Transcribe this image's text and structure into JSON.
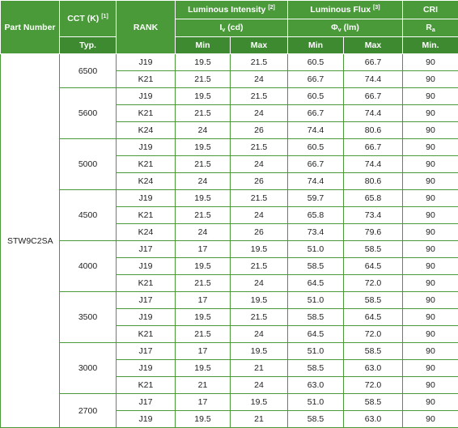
{
  "header": {
    "part_number": "Part Number",
    "cct": "CCT (K)",
    "cct_ref": "[1]",
    "rank": "RANK",
    "intensity": "Luminous Intensity",
    "intensity_ref": "[2]",
    "intensity_sym": "I",
    "intensity_sym_sub": "v",
    "intensity_unit": " (cd)",
    "flux": "Luminous Flux",
    "flux_ref": "[3]",
    "flux_sym": "Φ",
    "flux_sym_sub": "v",
    "flux_unit": " (lm)",
    "cri": "CRI",
    "cri_sym": "R",
    "cri_sym_sub": "a",
    "typ": "Typ.",
    "min": "Min",
    "max": "Max",
    "cri_min": "Min."
  },
  "part_number": "STW9C2SA",
  "groups": [
    {
      "cct": "6500",
      "rows": [
        {
          "rank": "J19",
          "i_min": "19.5",
          "i_max": "21.5",
          "f_min": "60.5",
          "f_max": "66.7",
          "cri": "90"
        },
        {
          "rank": "K21",
          "i_min": "21.5",
          "i_max": "24",
          "f_min": "66.7",
          "f_max": "74.4",
          "cri": "90"
        }
      ]
    },
    {
      "cct": "5600",
      "rows": [
        {
          "rank": "J19",
          "i_min": "19.5",
          "i_max": "21.5",
          "f_min": "60.5",
          "f_max": "66.7",
          "cri": "90"
        },
        {
          "rank": "K21",
          "i_min": "21.5",
          "i_max": "24",
          "f_min": "66.7",
          "f_max": "74.4",
          "cri": "90"
        },
        {
          "rank": "K24",
          "i_min": "24",
          "i_max": "26",
          "f_min": "74.4",
          "f_max": "80.6",
          "cri": "90"
        }
      ]
    },
    {
      "cct": "5000",
      "rows": [
        {
          "rank": "J19",
          "i_min": "19.5",
          "i_max": "21.5",
          "f_min": "60.5",
          "f_max": "66.7",
          "cri": "90"
        },
        {
          "rank": "K21",
          "i_min": "21.5",
          "i_max": "24",
          "f_min": "66.7",
          "f_max": "74.4",
          "cri": "90"
        },
        {
          "rank": "K24",
          "i_min": "24",
          "i_max": "26",
          "f_min": "74.4",
          "f_max": "80.6",
          "cri": "90"
        }
      ]
    },
    {
      "cct": "4500",
      "rows": [
        {
          "rank": "J19",
          "i_min": "19.5",
          "i_max": "21.5",
          "f_min": "59.7",
          "f_max": "65.8",
          "cri": "90"
        },
        {
          "rank": "K21",
          "i_min": "21.5",
          "i_max": "24",
          "f_min": "65.8",
          "f_max": "73.4",
          "cri": "90"
        },
        {
          "rank": "K24",
          "i_min": "24",
          "i_max": "26",
          "f_min": "73.4",
          "f_max": "79.6",
          "cri": "90"
        }
      ]
    },
    {
      "cct": "4000",
      "rows": [
        {
          "rank": "J17",
          "i_min": "17",
          "i_max": "19.5",
          "f_min": "51.0",
          "f_max": "58.5",
          "cri": "90"
        },
        {
          "rank": "J19",
          "i_min": "19.5",
          "i_max": "21.5",
          "f_min": "58.5",
          "f_max": "64.5",
          "cri": "90"
        },
        {
          "rank": "K21",
          "i_min": "21.5",
          "i_max": "24",
          "f_min": "64.5",
          "f_max": "72.0",
          "cri": "90"
        }
      ]
    },
    {
      "cct": "3500",
      "rows": [
        {
          "rank": "J17",
          "i_min": "17",
          "i_max": "19.5",
          "f_min": "51.0",
          "f_max": "58.5",
          "cri": "90"
        },
        {
          "rank": "J19",
          "i_min": "19.5",
          "i_max": "21.5",
          "f_min": "58.5",
          "f_max": "64.5",
          "cri": "90"
        },
        {
          "rank": "K21",
          "i_min": "21.5",
          "i_max": "24",
          "f_min": "64.5",
          "f_max": "72.0",
          "cri": "90"
        }
      ]
    },
    {
      "cct": "3000",
      "rows": [
        {
          "rank": "J17",
          "i_min": "17",
          "i_max": "19.5",
          "f_min": "51.0",
          "f_max": "58.5",
          "cri": "90"
        },
        {
          "rank": "J19",
          "i_min": "19.5",
          "i_max": "21",
          "f_min": "58.5",
          "f_max": "63.0",
          "cri": "90"
        },
        {
          "rank": "K21",
          "i_min": "21",
          "i_max": "24",
          "f_min": "63.0",
          "f_max": "72.0",
          "cri": "90"
        }
      ]
    },
    {
      "cct": "2700",
      "rows": [
        {
          "rank": "J17",
          "i_min": "17",
          "i_max": "19.5",
          "f_min": "51.0",
          "f_max": "58.5",
          "cri": "90"
        },
        {
          "rank": "J19",
          "i_min": "19.5",
          "i_max": "21",
          "f_min": "58.5",
          "f_max": "63.0",
          "cri": "90"
        }
      ]
    }
  ]
}
